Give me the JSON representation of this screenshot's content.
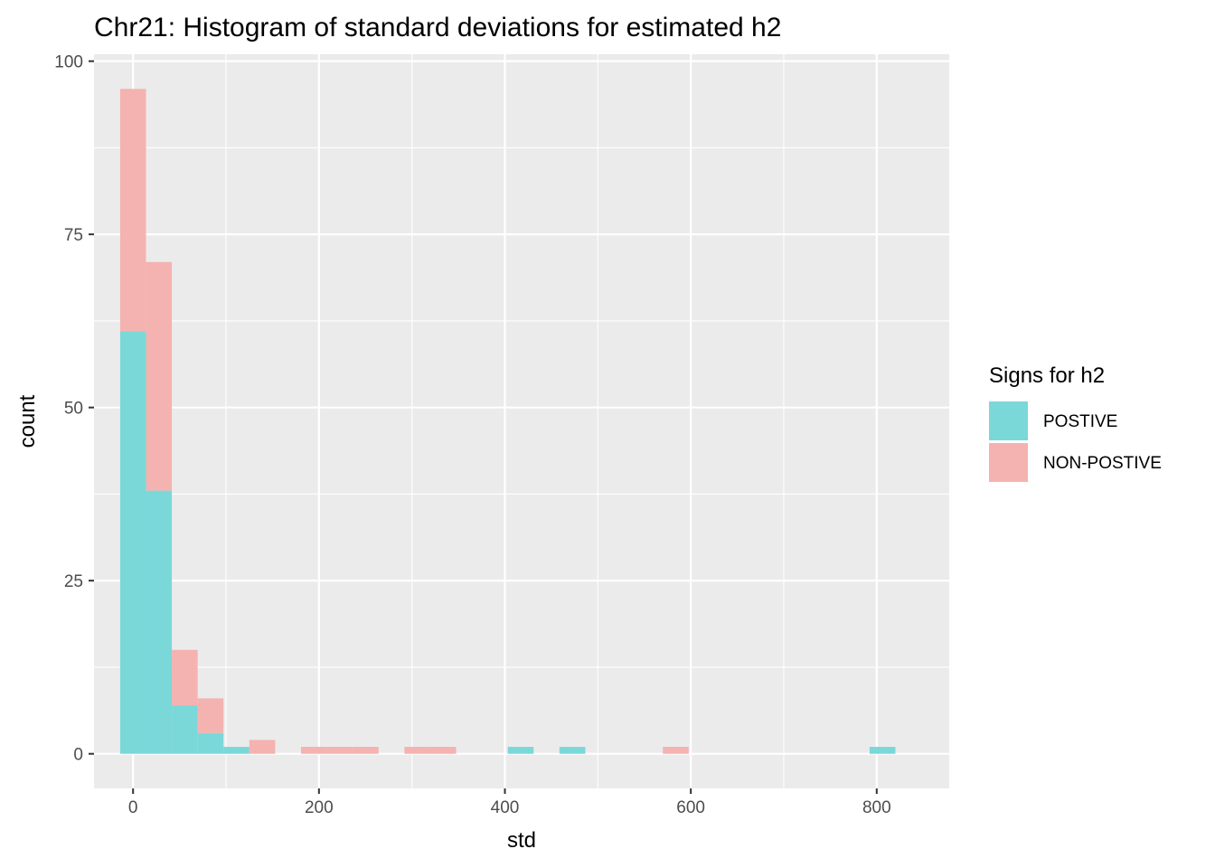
{
  "chart_data": {
    "type": "bar",
    "title": "Chr21: Histogram of standard deviations for estimated h2",
    "xlabel": "std",
    "ylabel": "count",
    "xlim": [
      -42,
      878
    ],
    "ylim": [
      -5,
      101
    ],
    "x_ticks": [
      0,
      200,
      400,
      600,
      800
    ],
    "y_ticks": [
      0,
      25,
      50,
      75,
      100
    ],
    "grid": true,
    "stacked": true,
    "legend": {
      "title": "Signs for h2",
      "position": "right"
    },
    "bins": {
      "width": 27.8,
      "centers": [
        0,
        27.8,
        55.6,
        83.4,
        111.2,
        139,
        166.8,
        194.6,
        222.4,
        250.2,
        278,
        305.8,
        333.6,
        361.4,
        389.2,
        417,
        444.8,
        472.6,
        500.4,
        528.2,
        556,
        583.8,
        611.6,
        639.4,
        667.2,
        695,
        722.8,
        750.6,
        778.4,
        806.2
      ]
    },
    "series": [
      {
        "name": "POSTIVE",
        "color": "#7ad8d9",
        "values": [
          61,
          38,
          7,
          3,
          1,
          0,
          0,
          0,
          0,
          0,
          0,
          0,
          0,
          0,
          0,
          1,
          0,
          1,
          0,
          0,
          0,
          0,
          0,
          0,
          0,
          0,
          0,
          0,
          0,
          1
        ]
      },
      {
        "name": "NON-POSTIVE",
        "color": "#f4b3b0",
        "values": [
          35,
          33,
          8,
          5,
          0,
          2,
          0,
          1,
          1,
          1,
          0,
          1,
          1,
          0,
          0,
          0,
          0,
          0,
          0,
          0,
          0,
          1,
          0,
          0,
          0,
          0,
          0,
          0,
          0,
          0
        ]
      }
    ]
  }
}
